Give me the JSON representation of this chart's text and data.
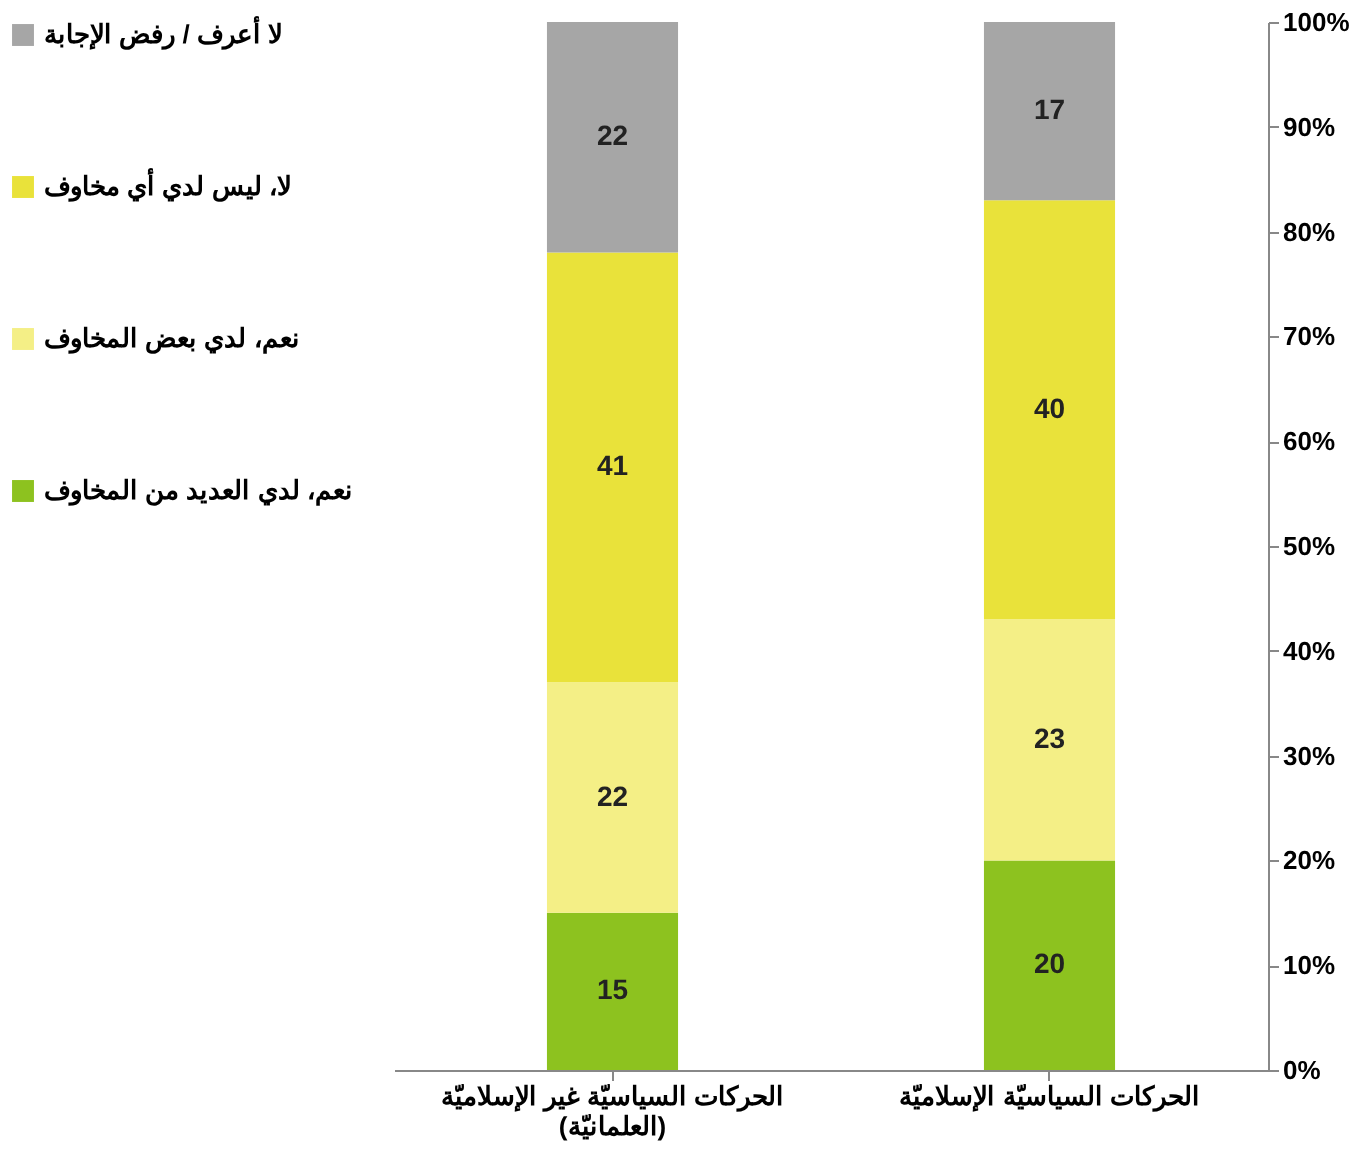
{
  "chart_data": {
    "type": "bar",
    "stacked": true,
    "data_labels": true,
    "legend": "left",
    "grid": false,
    "categories": [
      "الحركات السياسيّة غير الإسلاميّة\n(العلمانيّة)",
      "الحركات السياسيّة الإسلاميّة"
    ],
    "series": [
      {
        "name": "نعم، لدي العديد من المخاوف",
        "color": "#8dc21f",
        "values": [
          15,
          20
        ]
      },
      {
        "name": "نعم، لدي بعض المخاوف",
        "color": "#f4ef86",
        "values": [
          22,
          23
        ]
      },
      {
        "name": "لا، ليس لدي أي مخاوف",
        "color": "#e9e23a",
        "values": [
          41,
          40
        ]
      },
      {
        "name": "لا أعرف /  رفض الإجابة",
        "color": "#a6a6a6",
        "values": [
          22,
          17
        ]
      }
    ],
    "ylim": [
      0,
      100
    ],
    "yticks": [
      {
        "value": 0,
        "label": "0%"
      },
      {
        "value": 10,
        "label": "10%"
      },
      {
        "value": 20,
        "label": "20%"
      },
      {
        "value": 30,
        "label": "30%"
      },
      {
        "value": 40,
        "label": "40%"
      },
      {
        "value": 50,
        "label": "50%"
      },
      {
        "value": 60,
        "label": "60%"
      },
      {
        "value": 70,
        "label": "70%"
      },
      {
        "value": 80,
        "label": "80%"
      },
      {
        "value": 90,
        "label": "90%"
      },
      {
        "value": 100,
        "label": "100%"
      }
    ]
  }
}
